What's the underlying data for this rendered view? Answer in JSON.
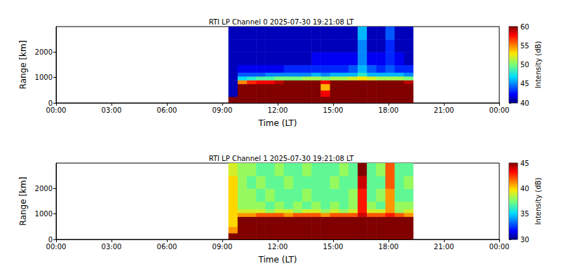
{
  "chart_data": [
    {
      "type": "heatmap",
      "title": "RTI LP Channel 0 2025-07-30 19:21:08 LT",
      "xlabel": "Time (LT)",
      "ylabel": "Range [km]",
      "xlim": [
        0,
        24
      ],
      "xticks": [
        {
          "value": 0,
          "label": "00:00"
        },
        {
          "value": 3,
          "label": "03:00"
        },
        {
          "value": 6,
          "label": "06:00"
        },
        {
          "value": 9,
          "label": "09:00"
        },
        {
          "value": 12,
          "label": "12:00"
        },
        {
          "value": 15,
          "label": "15:00"
        },
        {
          "value": 18,
          "label": "18:00"
        },
        {
          "value": 21,
          "label": "21:00"
        },
        {
          "value": 24,
          "label": "00:00"
        }
      ],
      "ylim": [
        0,
        3000
      ],
      "yticks": [
        0,
        1000,
        2000
      ],
      "time_edges": [
        9.33,
        9.83,
        10.33,
        10.83,
        11.33,
        11.83,
        12.33,
        12.83,
        13.33,
        13.83,
        14.33,
        14.83,
        15.33,
        15.83,
        16.33,
        16.83,
        17.33,
        17.83,
        18.33,
        18.83,
        19.33
      ],
      "range_edges": [
        0,
        250,
        500,
        750,
        900,
        1050,
        1200,
        1500,
        2000,
        2500,
        3000
      ],
      "values": [
        [
          62,
          41,
          41,
          41,
          41,
          41,
          41,
          41,
          41,
          41
        ],
        [
          62,
          62,
          62,
          55,
          47,
          44,
          42,
          41,
          41,
          41
        ],
        [
          62,
          62,
          62,
          57,
          48,
          44,
          42,
          41,
          41,
          41
        ],
        [
          62,
          62,
          62,
          58,
          49,
          44,
          42,
          41,
          41,
          41
        ],
        [
          62,
          62,
          62,
          58,
          49,
          45,
          42,
          41,
          41,
          41
        ],
        [
          62,
          62,
          62,
          59,
          50,
          45,
          42,
          41,
          41,
          41
        ],
        [
          62,
          62,
          62,
          60,
          50,
          45,
          43,
          41,
          41,
          41
        ],
        [
          62,
          62,
          62,
          60,
          50,
          45,
          43,
          41,
          41,
          41
        ],
        [
          62,
          62,
          62,
          60,
          51,
          45,
          43,
          41,
          41,
          41
        ],
        [
          62,
          62,
          62,
          61,
          51,
          46,
          43,
          42,
          41,
          41
        ],
        [
          62,
          58,
          54,
          58,
          50,
          45,
          43,
          42,
          41,
          41
        ],
        [
          62,
          62,
          62,
          61,
          51,
          46,
          43,
          42,
          41,
          41
        ],
        [
          62,
          62,
          62,
          61,
          51,
          46,
          43,
          42,
          41,
          41
        ],
        [
          62,
          62,
          62,
          61,
          52,
          46,
          44,
          42,
          41,
          41
        ],
        [
          62,
          62,
          62,
          61,
          53,
          48,
          46,
          45,
          45,
          46
        ],
        [
          62,
          62,
          62,
          61,
          52,
          46,
          44,
          42,
          41,
          41
        ],
        [
          62,
          62,
          62,
          60,
          51,
          46,
          43,
          42,
          41,
          41
        ],
        [
          62,
          62,
          62,
          60,
          51,
          46,
          44,
          43,
          43,
          44
        ],
        [
          62,
          62,
          62,
          60,
          51,
          46,
          43,
          42,
          41,
          41
        ],
        [
          62,
          62,
          62,
          59,
          50,
          45,
          43,
          41,
          41,
          41
        ]
      ],
      "colorbar": {
        "label": "Intensity (dB)",
        "range": [
          40,
          60
        ],
        "ticks": [
          40,
          45,
          50,
          55,
          60
        ]
      }
    },
    {
      "type": "heatmap",
      "title": "RTI LP Channel 1 2025-07-30 19:21:08 LT",
      "xlabel": "Time (LT)",
      "ylabel": "Range [km]",
      "xlim": [
        0,
        24
      ],
      "xticks": [
        {
          "value": 0,
          "label": "00:00"
        },
        {
          "value": 3,
          "label": "03:00"
        },
        {
          "value": 6,
          "label": "06:00"
        },
        {
          "value": 9,
          "label": "09:00"
        },
        {
          "value": 12,
          "label": "12:00"
        },
        {
          "value": 15,
          "label": "15:00"
        },
        {
          "value": 18,
          "label": "18:00"
        },
        {
          "value": 21,
          "label": "21:00"
        },
        {
          "value": 24,
          "label": "00:00"
        }
      ],
      "ylim": [
        0,
        3000
      ],
      "yticks": [
        0,
        1000,
        2000
      ],
      "time_edges": [
        9.33,
        9.83,
        10.33,
        10.83,
        11.33,
        11.83,
        12.33,
        12.83,
        13.33,
        13.83,
        14.33,
        14.83,
        15.33,
        15.83,
        16.33,
        16.83,
        17.33,
        17.83,
        18.33,
        18.83,
        19.33
      ],
      "range_edges": [
        0,
        250,
        500,
        750,
        900,
        1050,
        1200,
        1500,
        2000,
        2500,
        3000
      ],
      "values": [
        [
          50,
          41,
          40,
          40,
          40,
          40,
          40,
          40,
          40,
          39
        ],
        [
          50,
          50,
          50,
          46,
          41,
          39,
          38,
          38,
          38,
          38
        ],
        [
          50,
          50,
          50,
          47,
          41,
          39,
          38,
          38,
          37,
          38
        ],
        [
          50,
          50,
          50,
          48,
          42,
          39,
          38,
          37,
          38,
          37
        ],
        [
          50,
          50,
          50,
          48,
          42,
          38,
          37,
          38,
          37,
          37
        ],
        [
          50,
          50,
          50,
          48,
          42,
          39,
          38,
          37,
          37,
          38
        ],
        [
          50,
          50,
          50,
          48,
          41,
          39,
          37,
          37,
          38,
          37
        ],
        [
          50,
          50,
          50,
          48,
          42,
          38,
          38,
          37,
          37,
          37
        ],
        [
          50,
          50,
          50,
          49,
          42,
          39,
          37,
          38,
          37,
          38
        ],
        [
          50,
          50,
          50,
          48,
          42,
          39,
          38,
          37,
          37,
          37
        ],
        [
          50,
          47,
          45,
          47,
          41,
          38,
          37,
          37,
          37,
          37
        ],
        [
          50,
          50,
          50,
          49,
          42,
          39,
          38,
          37,
          38,
          37
        ],
        [
          50,
          50,
          50,
          48,
          42,
          38,
          37,
          37,
          37,
          38
        ],
        [
          50,
          50,
          50,
          49,
          42,
          39,
          38,
          38,
          37,
          37
        ],
        [
          50,
          50,
          50,
          49,
          44,
          43,
          43,
          43,
          44,
          45
        ],
        [
          50,
          50,
          50,
          48,
          42,
          39,
          38,
          37,
          37,
          37
        ],
        [
          50,
          50,
          50,
          48,
          42,
          39,
          37,
          38,
          37,
          38
        ],
        [
          50,
          50,
          50,
          48,
          43,
          41,
          41,
          41,
          42,
          42
        ],
        [
          50,
          50,
          50,
          48,
          42,
          38,
          38,
          37,
          37,
          37
        ],
        [
          50,
          50,
          50,
          47,
          41,
          39,
          38,
          37,
          38,
          37
        ]
      ],
      "colorbar": {
        "label": "Intensity (dB)",
        "range": [
          30,
          45
        ],
        "ticks": [
          30,
          35,
          40,
          45
        ]
      }
    }
  ]
}
